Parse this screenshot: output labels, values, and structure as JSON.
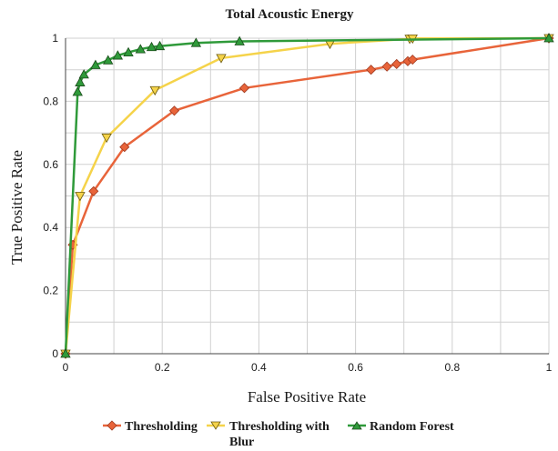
{
  "chart_data": {
    "type": "line",
    "title": "Total Acoustic Energy",
    "xlabel": "False Positive Rate",
    "ylabel": "True Positive Rate",
    "xlim": [
      0,
      1
    ],
    "ylim": [
      0,
      1
    ],
    "xticks": [
      "0",
      "0.2",
      "0.4",
      "0.6",
      "0.8",
      "1"
    ],
    "yticks": [
      "0",
      "0.2",
      "0.4",
      "0.6",
      "0.8",
      "1"
    ],
    "grid": true,
    "legend_position": "bottom",
    "series": [
      {
        "name": "Thresholding",
        "color": "#e8643a",
        "marker": "diamond",
        "points": [
          [
            0,
            0
          ],
          [
            0.015,
            0.345
          ],
          [
            0.058,
            0.515
          ],
          [
            0.122,
            0.655
          ],
          [
            0.225,
            0.77
          ],
          [
            0.37,
            0.842
          ],
          [
            0.632,
            0.9
          ],
          [
            0.665,
            0.91
          ],
          [
            0.685,
            0.918
          ],
          [
            0.708,
            0.927
          ],
          [
            0.718,
            0.932
          ],
          [
            1,
            1
          ]
        ]
      },
      {
        "name": "Thresholding with Blur",
        "color": "#f5d34a",
        "marker": "triangle-down",
        "points": [
          [
            0,
            0
          ],
          [
            0.03,
            0.5
          ],
          [
            0.085,
            0.685
          ],
          [
            0.185,
            0.835
          ],
          [
            0.322,
            0.937
          ],
          [
            0.547,
            0.982
          ],
          [
            0.712,
            0.998
          ],
          [
            0.718,
            0.999
          ],
          [
            1,
            1
          ]
        ]
      },
      {
        "name": "Random Forest",
        "color": "#2f9a3a",
        "marker": "triangle-up",
        "points": [
          [
            0,
            0
          ],
          [
            0.025,
            0.83
          ],
          [
            0.03,
            0.86
          ],
          [
            0.038,
            0.885
          ],
          [
            0.062,
            0.915
          ],
          [
            0.088,
            0.93
          ],
          [
            0.108,
            0.945
          ],
          [
            0.13,
            0.955
          ],
          [
            0.155,
            0.965
          ],
          [
            0.178,
            0.972
          ],
          [
            0.195,
            0.975
          ],
          [
            0.27,
            0.985
          ],
          [
            0.36,
            0.99
          ],
          [
            1,
            1
          ]
        ]
      }
    ],
    "legend_labels": {
      "s0": "Thresholding",
      "s1_line1": "Thresholding with",
      "s1_line2": "Blur",
      "s2": "Random Forest"
    }
  }
}
